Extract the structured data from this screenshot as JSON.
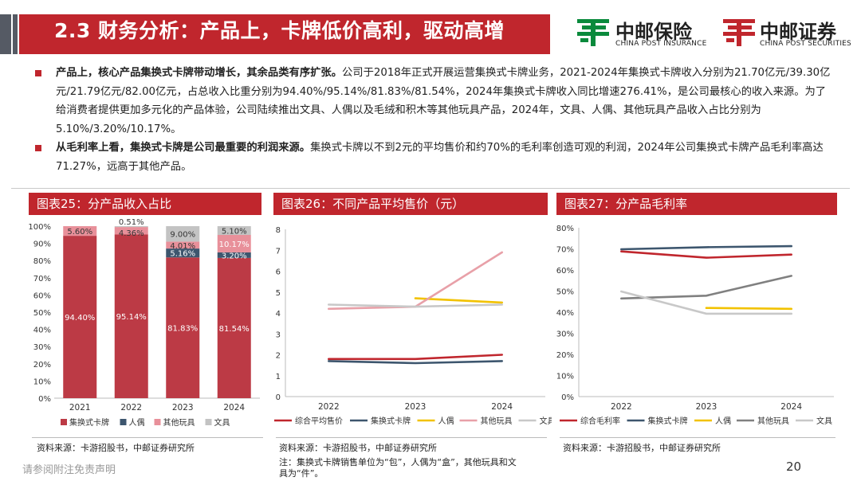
{
  "header": {
    "title": "2.3 财务分析：产品上，卡牌低价高利，驱动高增",
    "logo1_cn": "中邮保险",
    "logo1_en": "CHINA POST INSURANCE",
    "logo2_cn": "中邮证券",
    "logo2_en": "CHINA POST SECURITIES",
    "brand_color": "#c0262d",
    "logo1_color": "#0a8a3c"
  },
  "bullets": [
    {
      "bold": "产品上，核心产品集换式卡牌带动增长，其余品类有序扩张。",
      "text": "公司于2018年正式开展运营集换式卡牌业务，2021-2024年集换式卡牌收入分别为21.70亿元/39.30亿元/21.79亿元/82.00亿元，占总收入比重分别为94.40%/95.14%/81.83%/81.54%，2024年集换式卡牌收入同比增速276.41%，是公司最核心的收入来源。为了给消费者提供更加多元化的产品体验，公司陆续推出文具、人偶以及毛绒和积木等其他玩具产品，2024年，文具、人偶、其他玩具产品收入占比分别为5.10%/3.20%/10.17%。"
    },
    {
      "bold": "从毛利率上看，集换式卡牌是公司最重要的利润来源。",
      "text": "集换式卡牌以不到2元的平均售价和约70%的毛利率创造可观的利润，2024年公司集换式卡牌产品毛利率高达71.27%，远高于其他产品。"
    }
  ],
  "panels": {
    "p25": "图表25：分产品收入占比",
    "p26": "图表26：不同产品平均售价（元）",
    "p27": "图表27：分产品毛利率"
  },
  "sources": {
    "s25": "资料来源：卡游招股书，中邮证券研究所",
    "s26": "资料来源：卡游招股书，中邮证券研究所",
    "s26_note": "注：集换式卡牌销售单位为“包”，人偶为“盒”，其他玩具和文",
    "s26_note2": "具为“件”。",
    "s27": "资料来源：卡游招股书，中邮证券研究所"
  },
  "footer": {
    "disclaimer": "请参阅附注免责声明",
    "page": "20"
  },
  "chart_data": [
    {
      "type": "bar",
      "stacked": true,
      "title": "图表25：分产品收入占比",
      "categories": [
        "2021",
        "2022",
        "2023",
        "2024"
      ],
      "ylim": [
        0,
        100
      ],
      "ytick_labels": [
        "0%",
        "10%",
        "20%",
        "30%",
        "40%",
        "50%",
        "60%",
        "70%",
        "80%",
        "90%",
        "100%"
      ],
      "series": [
        {
          "name": "集换式卡牌",
          "color": "#bc3a45",
          "values": [
            94.4,
            95.14,
            81.83,
            81.54
          ],
          "labels": [
            "94.40%",
            "95.14%",
            "81.83%",
            "81.54%"
          ]
        },
        {
          "name": "人偶",
          "color": "#3d566e",
          "values": [
            0,
            0,
            5.16,
            3.2
          ],
          "labels": [
            "",
            "",
            "5.16%",
            "3.20%"
          ]
        },
        {
          "name": "其他玩具",
          "color": "#e8909a",
          "values": [
            5.6,
            4.36,
            4.01,
            10.17
          ],
          "labels": [
            "5.60%",
            "4.36%",
            "4.01%",
            "10.17%"
          ]
        },
        {
          "name": "文具",
          "color": "#c3c3c3",
          "values": [
            0,
            0.51,
            9.0,
            5.1
          ],
          "labels": [
            "",
            "0.51%",
            "9.00%",
            "5.10%"
          ]
        }
      ]
    },
    {
      "type": "line",
      "title": "图表26：不同产品平均售价（元）",
      "categories": [
        "2022",
        "2023",
        "2024"
      ],
      "ylim": [
        0,
        8
      ],
      "ytick_labels": [
        "0",
        "1",
        "2",
        "3",
        "4",
        "5",
        "6",
        "7",
        "8"
      ],
      "series": [
        {
          "name": "综合平均售价",
          "color": "#c0262d",
          "values": [
            1.8,
            1.8,
            2.0
          ]
        },
        {
          "name": "集换式卡牌",
          "color": "#3d566e",
          "values": [
            1.7,
            1.6,
            1.7
          ]
        },
        {
          "name": "人偶",
          "color": "#f2c200",
          "values": [
            null,
            4.7,
            4.5
          ]
        },
        {
          "name": "其他玩具",
          "color": "#e8a0a8",
          "values": [
            4.2,
            4.3,
            6.9
          ]
        },
        {
          "name": "文具",
          "color": "#c8c8c8",
          "values": [
            4.4,
            4.3,
            4.4
          ]
        }
      ]
    },
    {
      "type": "line",
      "title": "图表27：分产品毛利率",
      "categories": [
        "2022",
        "2023",
        "2024"
      ],
      "ylim": [
        0,
        80
      ],
      "ytick_labels": [
        "0%",
        "10%",
        "20%",
        "30%",
        "40%",
        "50%",
        "60%",
        "70%",
        "80%"
      ],
      "series": [
        {
          "name": "综合毛利率",
          "color": "#c0262d",
          "values": [
            68.8,
            65.8,
            67.3
          ]
        },
        {
          "name": "集换式卡牌",
          "color": "#3d566e",
          "values": [
            69.8,
            70.8,
            71.27
          ]
        },
        {
          "name": "人偶",
          "color": "#f2c200",
          "values": [
            null,
            42.0,
            41.6
          ]
        },
        {
          "name": "其他玩具",
          "color": "#808080",
          "values": [
            46.5,
            47.8,
            57.2
          ]
        },
        {
          "name": "文具",
          "color": "#c8c8c8",
          "values": [
            49.8,
            39.3,
            39.3
          ]
        }
      ]
    }
  ]
}
